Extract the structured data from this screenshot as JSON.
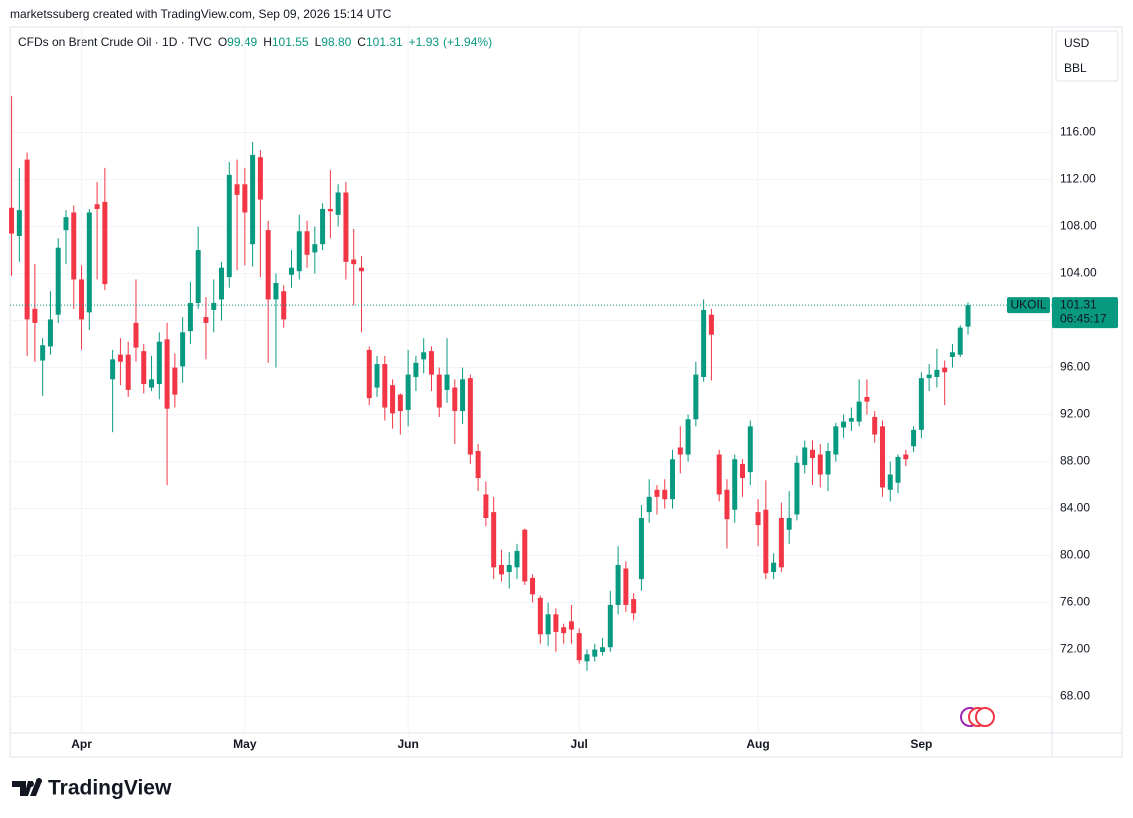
{
  "header": {
    "credit": "marketssuberg created with TradingView.com, Sep 09, 2026 15:14 UTC",
    "symbol": "CFDs on Brent Crude Oil · 1D · TVC",
    "ohlc": [
      {
        "key": "O",
        "value": "99.49"
      },
      {
        "key": "H",
        "value": "101.55"
      },
      {
        "key": "L",
        "value": "98.80"
      },
      {
        "key": "C",
        "value": "101.31"
      }
    ],
    "change": "+1.93",
    "change_pct": "(+1.94%)",
    "currency": "USD",
    "unit": "BBL",
    "logo": "TradingView"
  },
  "chart_data": {
    "type": "candlestick",
    "ticker": "UKOIL",
    "countdown": "06:45:17",
    "up_color": "#089981",
    "down_color": "#f23645",
    "grid": true,
    "xlim": [
      -0.2,
      133.8
    ],
    "xticks": [
      {
        "value": 9,
        "label": "Apr"
      },
      {
        "value": 30,
        "label": "May"
      },
      {
        "value": 51,
        "label": "Jun"
      },
      {
        "value": 73,
        "label": "Jul"
      },
      {
        "value": 96,
        "label": "Aug"
      },
      {
        "value": 117,
        "label": "Sep"
      }
    ],
    "ylim": [
      64.9,
      124.9
    ],
    "yticks": [
      {
        "value": 68,
        "label": "68.00"
      },
      {
        "value": 72,
        "label": "72.00"
      },
      {
        "value": 76,
        "label": "76.00"
      },
      {
        "value": 80,
        "label": "80.00"
      },
      {
        "value": 84,
        "label": "84.00"
      },
      {
        "value": 88,
        "label": "88.00"
      },
      {
        "value": 92,
        "label": "92.00"
      },
      {
        "value": 96,
        "label": "96.00"
      },
      {
        "value": 100,
        "label": "100.00"
      },
      {
        "value": 104,
        "label": "104.00"
      },
      {
        "value": 108,
        "label": "108.00"
      },
      {
        "value": 112,
        "label": "112.00"
      },
      {
        "value": 116,
        "label": "116.00"
      }
    ],
    "open": [
      109.6,
      107.2,
      113.7,
      101,
      96.6,
      97.8,
      100.5,
      107.7,
      109.2,
      103.5,
      100.7,
      109.9,
      110.1,
      95,
      97.1,
      97.1,
      99.8,
      97.4,
      94.3,
      94.6,
      98.4,
      96,
      96.1,
      99.1,
      101.5,
      100.3,
      100.9,
      101.8,
      103.7,
      111.6,
      111.6,
      106.5,
      113.9,
      107.7,
      101.8,
      102.5,
      103.9,
      104.2,
      107.6,
      105.8,
      106.5,
      109.5,
      109,
      110.9,
      105.2,
      104.5,
      97.5,
      94.3,
      96.3,
      94.5,
      93.7,
      92.4,
      95.2,
      96.7,
      97.4,
      95.4,
      94.1,
      94.3,
      92.3,
      95.1,
      88.9,
      85.2,
      83.7,
      79.2,
      78.6,
      79,
      82.2,
      78.1,
      76.4,
      73.3,
      75,
      73.9,
      74.4,
      73.4,
      71,
      71.4,
      71.8,
      72.2,
      75.8,
      78.9,
      76.3,
      78,
      83.7,
      85.6,
      85.6,
      84.8,
      89.2,
      88.6,
      91.6,
      95.2,
      100.5,
      88.6,
      85.6,
      83.9,
      87.8,
      87.1,
      83.7,
      83.9,
      78.6,
      83.2,
      82.2,
      83.5,
      87.7,
      89,
      88.6,
      86.9,
      88.6,
      90.9,
      91.4,
      91.4,
      93.5,
      91.8,
      91,
      85.6,
      86.2,
      88.6,
      89.3,
      90.7,
      95.1,
      95.2,
      96,
      96.9,
      97.1,
      99.49
    ],
    "high": [
      119.1,
      113,
      114.3,
      104.8,
      98.5,
      102.5,
      107,
      109.4,
      109.8,
      104.7,
      109.5,
      111.8,
      113,
      97.5,
      98.5,
      98.2,
      103.5,
      98,
      97,
      99,
      99.8,
      97.2,
      100.3,
      103.3,
      108,
      102,
      103.5,
      105,
      113.5,
      113.7,
      113,
      115.2,
      114.5,
      108.5,
      104,
      103,
      106,
      109,
      108.5,
      108,
      110,
      112.8,
      111.6,
      111.8,
      107.8,
      105.5,
      97.8,
      97,
      97,
      95,
      93.8,
      97.5,
      97,
      98.5,
      97.8,
      96,
      98.5,
      95,
      96,
      95.4,
      89.5,
      86.3,
      85,
      80.5,
      80.3,
      81,
      82.3,
      78.4,
      76.6,
      76,
      75.5,
      74.2,
      75.8,
      73.8,
      72,
      72.5,
      73,
      77,
      80.8,
      79.5,
      76.8,
      84.3,
      86.5,
      86,
      86.5,
      89,
      91,
      92,
      96.5,
      101.8,
      101,
      89,
      86.5,
      88.6,
      88.2,
      91.5,
      84.8,
      86.4,
      80.2,
      84.5,
      85.5,
      88.5,
      89.8,
      89.8,
      89.5,
      89.6,
      91.3,
      92,
      92.6,
      95,
      95,
      92.3,
      91.5,
      88,
      88.6,
      89,
      91,
      95.6,
      96.3,
      97.6,
      96.6,
      98,
      99.6,
      101.55
    ],
    "low": [
      103.8,
      105,
      97,
      96.5,
      93.6,
      97.1,
      99.8,
      104.8,
      101,
      97.5,
      99.2,
      103.5,
      102.6,
      90.5,
      94.5,
      93.5,
      96.5,
      93.8,
      94,
      93.3,
      86,
      92.6,
      94.7,
      98,
      101,
      96.7,
      99,
      100,
      102.8,
      104.3,
      104.7,
      104.6,
      103.7,
      96.4,
      96,
      99.4,
      102.8,
      103.5,
      104.5,
      104,
      106,
      107,
      108,
      103.5,
      101.3,
      99,
      92.8,
      93.5,
      91.5,
      90.8,
      90.3,
      91,
      94,
      95.5,
      94,
      91.8,
      93,
      89.5,
      91.2,
      87.8,
      85.5,
      82.5,
      78,
      77.8,
      77.2,
      78,
      77.5,
      76,
      72.5,
      72.3,
      71.8,
      72.5,
      72.5,
      70.8,
      70.2,
      71,
      71.5,
      71.8,
      75,
      75.2,
      74.5,
      77,
      82.8,
      83.5,
      84,
      84,
      87,
      88,
      91,
      94.8,
      94.9,
      84.6,
      80.6,
      82.8,
      85,
      86,
      80.8,
      78,
      78,
      78.6,
      81,
      83,
      87,
      86,
      85.8,
      85.5,
      88,
      90,
      90.6,
      91,
      92,
      89.6,
      85,
      84.6,
      85.3,
      87.6,
      88.8,
      90,
      94,
      94.3,
      92.8,
      96,
      96.9,
      98.8
    ],
    "close": [
      107.4,
      109.4,
      100.1,
      99.8,
      97.9,
      100.1,
      106.2,
      108.8,
      103.5,
      100.1,
      109.2,
      109.5,
      103.1,
      96.7,
      96.5,
      94.1,
      97.7,
      94.6,
      95,
      98.2,
      92.5,
      93.7,
      99,
      101.5,
      106,
      99.8,
      101.5,
      104.5,
      112.4,
      110.7,
      109.2,
      114.1,
      110.3,
      101.8,
      103.2,
      100.1,
      104.5,
      107.6,
      105.6,
      106.5,
      109.5,
      109.3,
      110.9,
      105,
      104.8,
      104.2,
      93.4,
      96.3,
      92.6,
      92.1,
      92.3,
      95.4,
      96.4,
      97.3,
      95.4,
      92.6,
      95.4,
      92.3,
      95,
      88.6,
      86.6,
      83.2,
      79,
      78.4,
      79.2,
      80.4,
      77.8,
      76.7,
      73.3,
      75,
      73.5,
      73.4,
      73.7,
      71.1,
      71.6,
      72,
      72.2,
      75.8,
      79.2,
      75.8,
      75.1,
      83.2,
      85,
      85,
      84.8,
      88.2,
      88.6,
      91.6,
      95.4,
      100.9,
      98.8,
      85.2,
      83.1,
      88.2,
      86.6,
      91,
      82.6,
      78.5,
      79.4,
      79,
      83.2,
      87.9,
      89.2,
      88.3,
      86.9,
      88.9,
      91,
      91.4,
      91.7,
      93.1,
      93.1,
      90.3,
      85.8,
      86.9,
      88.4,
      88.2,
      90.7,
      95.1,
      95.4,
      95.8,
      95.6,
      97.3,
      99.4,
      101.31
    ]
  }
}
